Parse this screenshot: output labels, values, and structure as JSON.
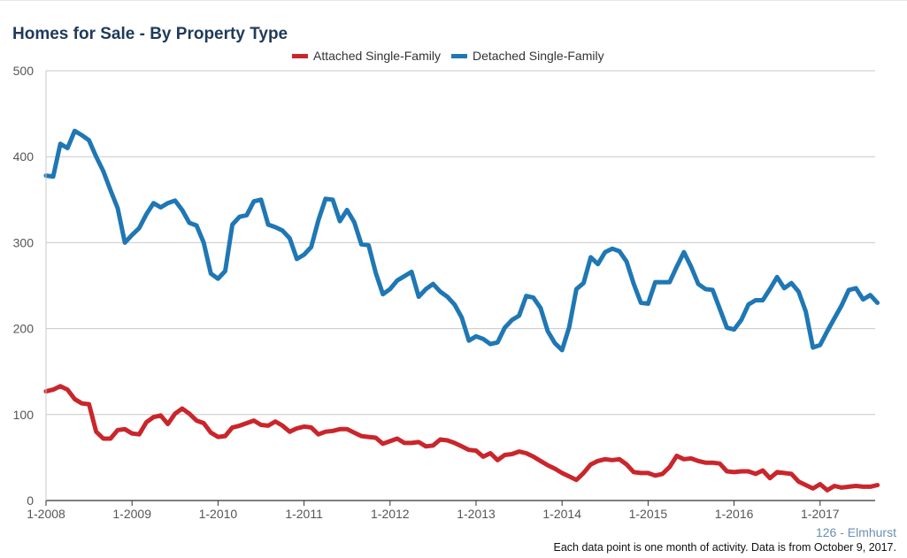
{
  "chart_data": {
    "type": "line",
    "title": "Homes for Sale - By Property Type",
    "ylim": [
      0,
      500
    ],
    "y_ticks": [
      "0",
      "100",
      "200",
      "300",
      "400",
      "500"
    ],
    "x_start": "1-2008",
    "x_tick_labels": [
      "1-2008",
      "1-2009",
      "1-2010",
      "1-2011",
      "1-2012",
      "1-2013",
      "1-2014",
      "1-2015",
      "1-2016",
      "1-2017"
    ],
    "grid": true,
    "legend_position": "top-center",
    "series": [
      {
        "name": "Attached Single-Family",
        "color": "#c9262c",
        "values": [
          127,
          129,
          133,
          129,
          118,
          113,
          112,
          80,
          72,
          72,
          82,
          83,
          78,
          77,
          91,
          97,
          99,
          89,
          101,
          107,
          101,
          93,
          90,
          79,
          74,
          75,
          85,
          87,
          90,
          93,
          88,
          87,
          92,
          87,
          80,
          84,
          86,
          85,
          77,
          80,
          81,
          83,
          83,
          79,
          75,
          74,
          73,
          66,
          69,
          72,
          67,
          67,
          68,
          63,
          64,
          71,
          70,
          67,
          63,
          59,
          58,
          51,
          55,
          47,
          53,
          54,
          57,
          55,
          51,
          46,
          41,
          37,
          32,
          28,
          24,
          32,
          42,
          46,
          48,
          47,
          48,
          42,
          33,
          32,
          32,
          29,
          31,
          39,
          52,
          48,
          49,
          46,
          44,
          44,
          43,
          34,
          33,
          34,
          34,
          31,
          35,
          26,
          33,
          32,
          31,
          22,
          18,
          14,
          19,
          12,
          17,
          15,
          16,
          17,
          16,
          16,
          18
        ]
      },
      {
        "name": "Detached Single-Family",
        "color": "#1f77b4",
        "values": [
          378,
          377,
          415,
          410,
          430,
          425,
          419,
          400,
          383,
          361,
          340,
          300,
          309,
          317,
          333,
          346,
          341,
          346,
          349,
          338,
          323,
          320,
          300,
          264,
          258,
          267,
          321,
          330,
          332,
          348,
          350,
          321,
          318,
          314,
          305,
          281,
          286,
          295,
          326,
          351,
          350,
          325,
          338,
          324,
          298,
          297,
          265,
          240,
          246,
          256,
          261,
          266,
          237,
          246,
          252,
          243,
          237,
          228,
          213,
          186,
          191,
          188,
          182,
          184,
          201,
          210,
          215,
          238,
          236,
          224,
          197,
          183,
          175,
          202,
          246,
          253,
          283,
          275,
          289,
          293,
          290,
          278,
          252,
          230,
          229,
          254,
          254,
          254,
          272,
          289,
          272,
          252,
          246,
          245,
          223,
          201,
          199,
          210,
          228,
          233,
          233,
          246,
          260,
          247,
          253,
          243,
          220,
          178,
          181,
          197,
          212,
          227,
          245,
          247,
          234,
          239,
          230
        ]
      }
    ]
  },
  "footer": {
    "area": "126 - Elmhurst",
    "note": "Each data point is one month of activity. Data is from October 9, 2017."
  }
}
